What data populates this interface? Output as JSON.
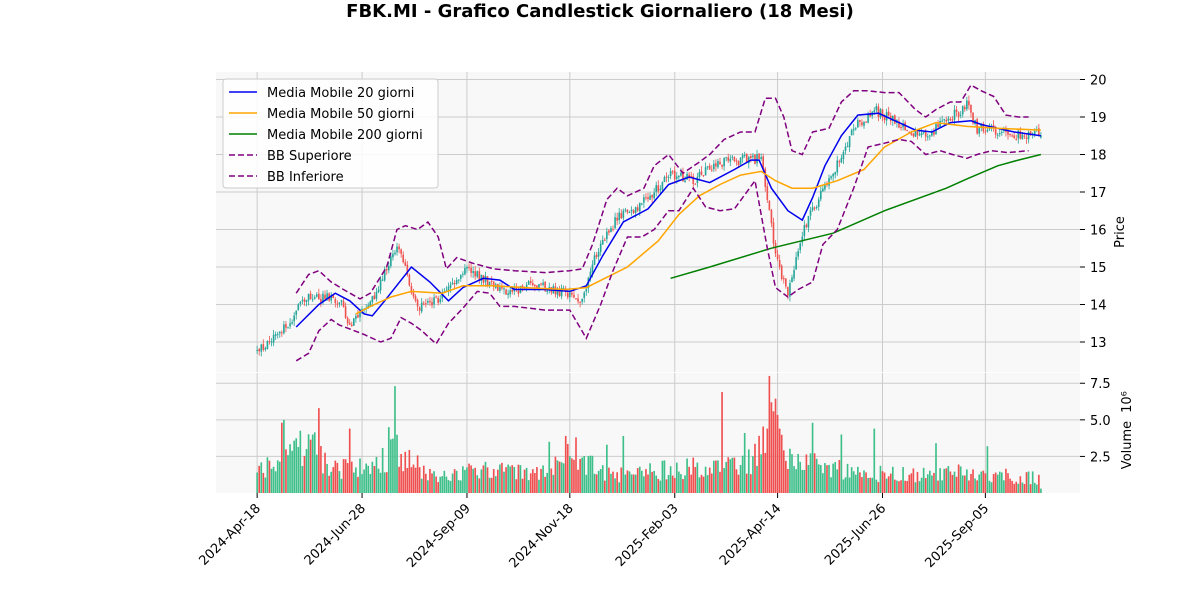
{
  "chart_data": {
    "type": "candlestick",
    "title": "FBK.MI - Grafico Candlestick Giornaliero (18 Mesi)",
    "price_panel": {
      "ylabel": "Price",
      "ylim": [
        12.2,
        20.2
      ],
      "yticks": [
        13,
        14,
        15,
        16,
        17,
        18,
        19,
        20
      ],
      "grid": true
    },
    "volume_panel": {
      "ylabel": "Volume",
      "scale_label": "10⁶",
      "ylim": [
        0,
        8.2
      ],
      "yticks": [
        2.5,
        5.0,
        7.5
      ],
      "ytick_labels": [
        "2.5",
        "5.0",
        "7.5"
      ],
      "grid": true
    },
    "x_ticks": [
      {
        "label": "2024-Apr-18",
        "x": 0
      },
      {
        "label": "2024-Jun-28",
        "x": 51
      },
      {
        "label": "2024-Sep-09",
        "x": 102
      },
      {
        "label": "2024-Nov-18",
        "x": 152
      },
      {
        "label": "2025-Feb-03",
        "x": 203
      },
      {
        "label": "2025-Apr-14",
        "x": 253
      },
      {
        "label": "2025-Jun-26",
        "x": 304
      },
      {
        "label": "2025-Sep-05",
        "x": 354
      }
    ],
    "x_range": [
      -20,
      400
    ],
    "n_candles": 382,
    "price_anchors": [
      [
        0,
        12.75
      ],
      [
        12,
        13.3
      ],
      [
        25,
        14.25
      ],
      [
        40,
        14.1
      ],
      [
        45,
        13.5
      ],
      [
        55,
        14.0
      ],
      [
        68,
        15.6
      ],
      [
        78,
        13.9
      ],
      [
        90,
        14.2
      ],
      [
        100,
        14.9
      ],
      [
        110,
        14.7
      ],
      [
        120,
        14.3
      ],
      [
        135,
        14.55
      ],
      [
        145,
        14.4
      ],
      [
        158,
        14.1
      ],
      [
        165,
        15.4
      ],
      [
        175,
        16.3
      ],
      [
        190,
        16.8
      ],
      [
        200,
        17.5
      ],
      [
        212,
        17.3
      ],
      [
        225,
        17.8
      ],
      [
        245,
        17.9
      ],
      [
        252,
        15.3
      ],
      [
        258,
        14.2
      ],
      [
        265,
        15.9
      ],
      [
        270,
        16.5
      ],
      [
        280,
        17.5
      ],
      [
        290,
        18.7
      ],
      [
        300,
        19.2
      ],
      [
        310,
        18.9
      ],
      [
        318,
        18.6
      ],
      [
        325,
        18.5
      ],
      [
        335,
        18.9
      ],
      [
        345,
        19.3
      ],
      [
        350,
        18.7
      ],
      [
        360,
        18.6
      ],
      [
        370,
        18.5
      ],
      [
        381,
        18.6
      ]
    ],
    "volume_anchors": [
      [
        0,
        1.6
      ],
      [
        15,
        2.2
      ],
      [
        25,
        3.5
      ],
      [
        35,
        1.8
      ],
      [
        55,
        1.6
      ],
      [
        67,
        3.0
      ],
      [
        75,
        2.0
      ],
      [
        90,
        1.2
      ],
      [
        110,
        1.5
      ],
      [
        140,
        1.4
      ],
      [
        150,
        2.4
      ],
      [
        160,
        2.0
      ],
      [
        175,
        1.2
      ],
      [
        195,
        1.5
      ],
      [
        215,
        1.8
      ],
      [
        240,
        2.2
      ],
      [
        248,
        4.0
      ],
      [
        250,
        6.5
      ],
      [
        256,
        3.0
      ],
      [
        265,
        2.2
      ],
      [
        285,
        1.6
      ],
      [
        300,
        1.3
      ],
      [
        320,
        1.2
      ],
      [
        340,
        1.4
      ],
      [
        360,
        1.2
      ],
      [
        381,
        1.0
      ]
    ],
    "volume_spikes": [
      [
        12,
        4.8
      ],
      [
        13,
        5.0
      ],
      [
        30,
        5.8
      ],
      [
        45,
        4.4
      ],
      [
        64,
        4.5
      ],
      [
        67,
        7.3
      ],
      [
        142,
        3.5
      ],
      [
        150,
        3.9
      ],
      [
        155,
        3.8
      ],
      [
        170,
        3.3
      ],
      [
        178,
        3.9
      ],
      [
        226,
        6.9
      ],
      [
        237,
        4.1
      ],
      [
        248,
        4.4
      ],
      [
        249,
        8.0
      ],
      [
        250,
        6.2
      ],
      [
        270,
        4.8
      ],
      [
        284,
        4.0
      ],
      [
        300,
        4.4
      ],
      [
        330,
        3.4
      ],
      [
        355,
        3.2
      ]
    ],
    "series": [
      {
        "name": "Media Mobile 20 giorni",
        "color": "#0000ee",
        "dash": false,
        "points": [
          [
            19,
            13.4
          ],
          [
            30,
            14.0
          ],
          [
            38,
            14.3
          ],
          [
            45,
            14.1
          ],
          [
            52,
            13.75
          ],
          [
            56,
            13.7
          ],
          [
            62,
            14.1
          ],
          [
            75,
            15.0
          ],
          [
            84,
            14.6
          ],
          [
            93,
            14.1
          ],
          [
            100,
            14.45
          ],
          [
            110,
            14.7
          ],
          [
            118,
            14.65
          ],
          [
            125,
            14.4
          ],
          [
            140,
            14.4
          ],
          [
            152,
            14.35
          ],
          [
            160,
            14.5
          ],
          [
            168,
            15.3
          ],
          [
            178,
            16.2
          ],
          [
            190,
            16.55
          ],
          [
            200,
            17.2
          ],
          [
            210,
            17.4
          ],
          [
            220,
            17.25
          ],
          [
            232,
            17.6
          ],
          [
            240,
            17.85
          ],
          [
            244,
            17.85
          ],
          [
            250,
            17.1
          ],
          [
            258,
            16.5
          ],
          [
            265,
            16.25
          ],
          [
            270,
            16.85
          ],
          [
            276,
            17.7
          ],
          [
            284,
            18.5
          ],
          [
            292,
            19.05
          ],
          [
            302,
            19.1
          ],
          [
            312,
            18.85
          ],
          [
            320,
            18.65
          ],
          [
            328,
            18.6
          ],
          [
            337,
            18.85
          ],
          [
            347,
            18.9
          ],
          [
            352,
            18.8
          ],
          [
            360,
            18.7
          ],
          [
            368,
            18.6
          ],
          [
            381,
            18.5
          ]
        ]
      },
      {
        "name": "Media Mobile 50 giorni",
        "color": "#ffa500",
        "dash": false,
        "points": [
          [
            48,
            13.75
          ],
          [
            55,
            13.95
          ],
          [
            65,
            14.2
          ],
          [
            75,
            14.35
          ],
          [
            90,
            14.3
          ],
          [
            100,
            14.5
          ],
          [
            115,
            14.5
          ],
          [
            130,
            14.45
          ],
          [
            150,
            14.4
          ],
          [
            160,
            14.45
          ],
          [
            180,
            15.0
          ],
          [
            195,
            15.7
          ],
          [
            205,
            16.4
          ],
          [
            215,
            16.9
          ],
          [
            225,
            17.2
          ],
          [
            235,
            17.45
          ],
          [
            245,
            17.55
          ],
          [
            252,
            17.3
          ],
          [
            260,
            17.1
          ],
          [
            270,
            17.1
          ],
          [
            282,
            17.3
          ],
          [
            295,
            17.6
          ],
          [
            305,
            18.2
          ],
          [
            318,
            18.6
          ],
          [
            330,
            18.85
          ],
          [
            345,
            18.75
          ],
          [
            360,
            18.7
          ],
          [
            381,
            18.65
          ]
        ]
      },
      {
        "name": "Media Mobile 200 giorni",
        "color": "#008000",
        "dash": false,
        "points": [
          [
            201,
            14.7
          ],
          [
            220,
            15.0
          ],
          [
            250,
            15.5
          ],
          [
            280,
            15.9
          ],
          [
            305,
            16.5
          ],
          [
            335,
            17.1
          ],
          [
            345,
            17.35
          ],
          [
            360,
            17.7
          ],
          [
            370,
            17.85
          ],
          [
            381,
            18.0
          ]
        ]
      },
      {
        "name": "BB Superiore",
        "color": "#800080",
        "dash": true,
        "points": [
          [
            19,
            14.3
          ],
          [
            25,
            14.8
          ],
          [
            30,
            14.9
          ],
          [
            36,
            14.6
          ],
          [
            42,
            14.4
          ],
          [
            50,
            14.15
          ],
          [
            55,
            14.3
          ],
          [
            63,
            15.0
          ],
          [
            68,
            16.0
          ],
          [
            72,
            16.1
          ],
          [
            78,
            16.0
          ],
          [
            83,
            16.2
          ],
          [
            88,
            15.8
          ],
          [
            92,
            14.95
          ],
          [
            97,
            15.25
          ],
          [
            105,
            15.1
          ],
          [
            115,
            14.95
          ],
          [
            125,
            14.9
          ],
          [
            140,
            14.85
          ],
          [
            152,
            14.9
          ],
          [
            158,
            14.95
          ],
          [
            163,
            15.6
          ],
          [
            170,
            16.8
          ],
          [
            175,
            17.1
          ],
          [
            180,
            16.9
          ],
          [
            188,
            17.1
          ],
          [
            193,
            17.7
          ],
          [
            200,
            18.0
          ],
          [
            207,
            17.5
          ],
          [
            215,
            17.8
          ],
          [
            220,
            18.0
          ],
          [
            227,
            18.4
          ],
          [
            235,
            18.6
          ],
          [
            242,
            18.6
          ],
          [
            247,
            19.5
          ],
          [
            252,
            19.5
          ],
          [
            256,
            19.0
          ],
          [
            260,
            18.1
          ],
          [
            265,
            18.0
          ],
          [
            270,
            18.6
          ],
          [
            278,
            18.7
          ],
          [
            284,
            19.4
          ],
          [
            290,
            19.7
          ],
          [
            297,
            19.7
          ],
          [
            305,
            19.65
          ],
          [
            312,
            19.65
          ],
          [
            320,
            19.2
          ],
          [
            325,
            19.0
          ],
          [
            330,
            19.2
          ],
          [
            337,
            19.4
          ],
          [
            342,
            19.4
          ],
          [
            347,
            19.85
          ],
          [
            352,
            19.7
          ],
          [
            358,
            19.55
          ],
          [
            364,
            19.05
          ],
          [
            370,
            19.0
          ],
          [
            375,
            19.0
          ]
        ]
      },
      {
        "name": "BB Inferiore",
        "color": "#800080",
        "dash": true,
        "points": [
          [
            19,
            12.5
          ],
          [
            25,
            12.7
          ],
          [
            30,
            13.3
          ],
          [
            36,
            13.6
          ],
          [
            40,
            13.45
          ],
          [
            45,
            13.35
          ],
          [
            52,
            13.2
          ],
          [
            60,
            13.0
          ],
          [
            65,
            13.1
          ],
          [
            70,
            13.65
          ],
          [
            75,
            13.5
          ],
          [
            80,
            13.3
          ],
          [
            87,
            12.95
          ],
          [
            93,
            13.5
          ],
          [
            100,
            13.9
          ],
          [
            107,
            14.35
          ],
          [
            113,
            14.3
          ],
          [
            118,
            13.95
          ],
          [
            125,
            13.95
          ],
          [
            140,
            13.85
          ],
          [
            152,
            13.85
          ],
          [
            160,
            13.1
          ],
          [
            167,
            14.0
          ],
          [
            173,
            14.9
          ],
          [
            180,
            15.8
          ],
          [
            187,
            15.8
          ],
          [
            193,
            16.0
          ],
          [
            200,
            16.5
          ],
          [
            205,
            16.5
          ],
          [
            212,
            17.1
          ],
          [
            218,
            16.6
          ],
          [
            225,
            16.5
          ],
          [
            232,
            16.55
          ],
          [
            242,
            17.3
          ],
          [
            248,
            15.5
          ],
          [
            252,
            14.45
          ],
          [
            258,
            14.2
          ],
          [
            263,
            14.4
          ],
          [
            270,
            14.6
          ],
          [
            275,
            15.6
          ],
          [
            282,
            16.0
          ],
          [
            290,
            17.1
          ],
          [
            297,
            18.2
          ],
          [
            305,
            18.3
          ],
          [
            312,
            18.4
          ],
          [
            318,
            18.35
          ],
          [
            325,
            18.0
          ],
          [
            332,
            18.1
          ],
          [
            338,
            18.0
          ],
          [
            345,
            17.9
          ],
          [
            350,
            18.0
          ],
          [
            357,
            18.1
          ],
          [
            365,
            18.05
          ],
          [
            375,
            18.1
          ]
        ]
      }
    ],
    "legend": {
      "placement": "upper-left",
      "entries": [
        "Media Mobile 20 giorni",
        "Media Mobile 50 giorni",
        "Media Mobile 200 giorni",
        "BB Superiore",
        "BB Inferiore"
      ]
    },
    "colors": {
      "up": "#26a69a",
      "up_vol": "#3dbf8a",
      "down": "#ef5350",
      "down_vol": "#f04f4f",
      "panel_bg": "#f8f8f8",
      "grid": "#cccccc"
    }
  }
}
